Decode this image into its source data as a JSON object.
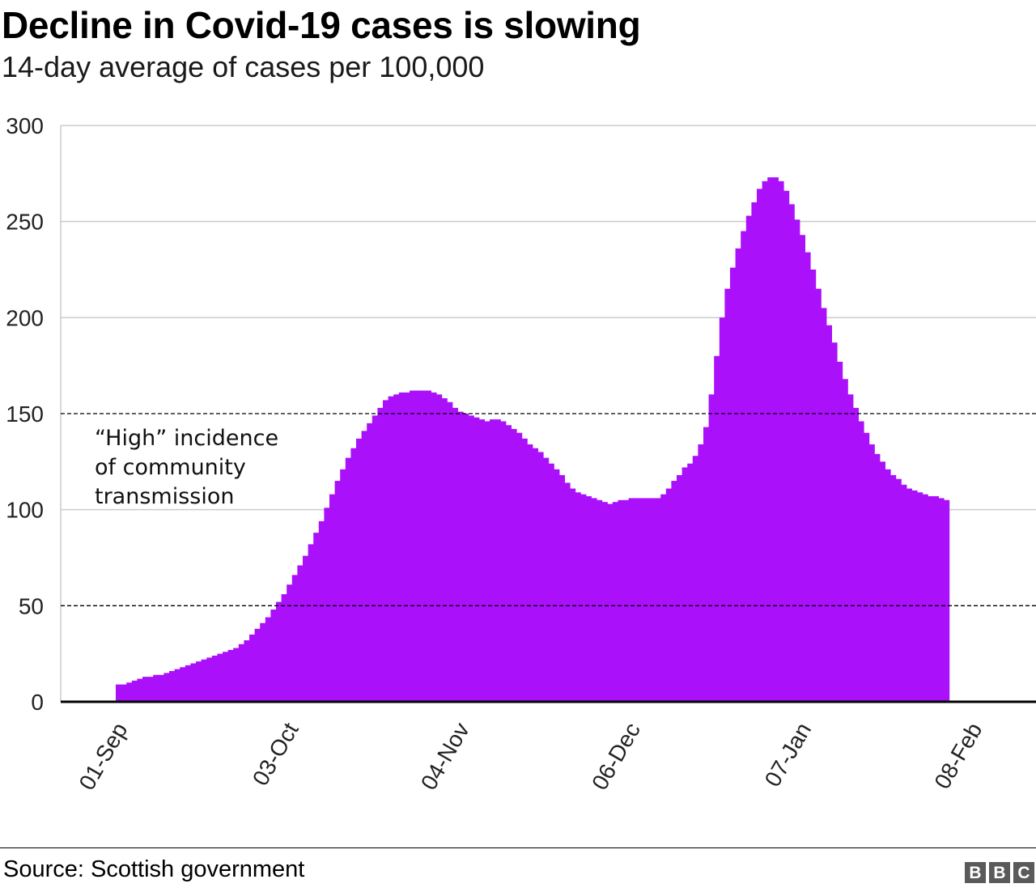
{
  "title": "Decline in Covid-19 cases is slowing",
  "subtitle": "14-day average of cases per 100,000",
  "source": "Source: Scottish government",
  "logo": "BBC",
  "colors": {
    "bars": "#aa10fa",
    "grid": "#cccccc",
    "threshold": "#000000"
  },
  "chart_data": {
    "type": "bar",
    "x_start": "01-Sep",
    "x_ticks": [
      "01-Sep",
      "03-Oct",
      "04-Nov",
      "06-Dec",
      "07-Jan",
      "08-Feb"
    ],
    "x_tick_index": [
      0,
      32,
      64,
      96,
      128,
      160
    ],
    "yticks": [
      0,
      50,
      100,
      150,
      200,
      250,
      300
    ],
    "ylim": [
      0,
      300
    ],
    "grid": true,
    "annotation": [
      "“High” incidence",
      "of community",
      "transmission"
    ],
    "thresholds": [
      150,
      50
    ],
    "values": [
      9,
      9,
      10,
      11,
      12,
      13,
      13,
      14,
      14,
      15,
      16,
      17,
      18,
      19,
      20,
      21,
      22,
      23,
      24,
      25,
      26,
      27,
      28,
      30,
      32,
      35,
      38,
      41,
      44,
      48,
      52,
      56,
      61,
      66,
      71,
      76,
      82,
      88,
      94,
      101,
      108,
      115,
      121,
      127,
      132,
      137,
      141,
      145,
      149,
      153,
      157,
      159,
      160,
      161,
      161,
      162,
      162,
      162,
      162,
      161,
      160,
      158,
      156,
      153,
      151,
      150,
      149,
      148,
      147,
      146,
      147,
      147,
      146,
      144,
      142,
      140,
      137,
      134,
      132,
      130,
      127,
      124,
      121,
      118,
      114,
      111,
      109,
      108,
      107,
      106,
      105,
      104,
      103,
      104,
      105,
      105,
      106,
      106,
      106,
      106,
      106,
      106,
      108,
      111,
      115,
      118,
      122,
      124,
      128,
      134,
      143,
      160,
      180,
      200,
      215,
      226,
      236,
      245,
      253,
      260,
      267,
      271,
      273,
      273,
      271,
      266,
      259,
      251,
      243,
      234,
      225,
      215,
      205,
      196,
      187,
      177,
      168,
      160,
      153,
      146,
      140,
      134,
      129,
      125,
      121,
      118,
      116,
      113,
      111,
      110,
      109,
      108,
      107,
      107,
      106,
      105
    ]
  }
}
